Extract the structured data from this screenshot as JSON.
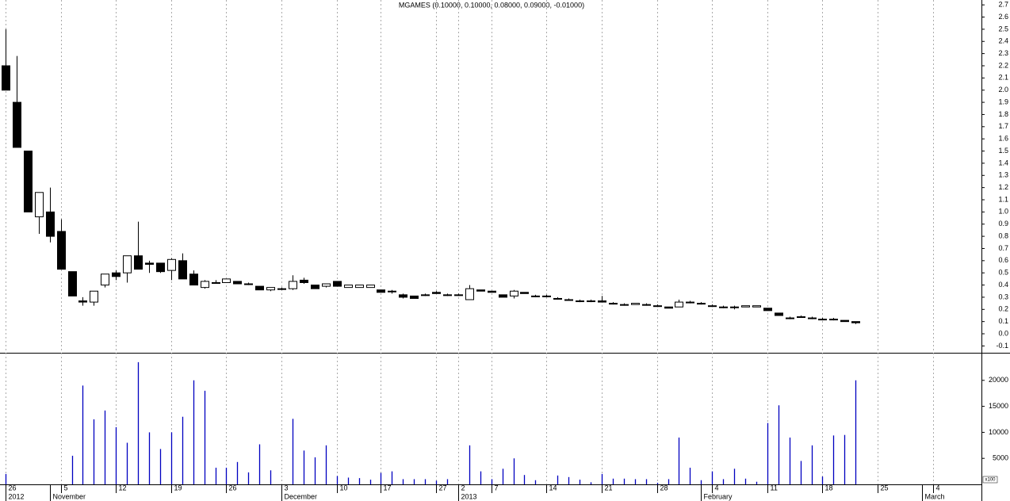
{
  "chart_data": [
    {
      "type": "candlestick",
      "title": "MGAMES (0.10000, 0.10000, 0.08000, 0.09000, -0.01000)",
      "open": [
        2.2,
        1.9,
        1.5,
        0.96,
        1.0,
        0.84,
        0.51,
        0.27,
        0.26,
        0.4,
        0.5,
        0.5,
        0.64,
        0.58,
        0.58,
        0.52,
        0.6,
        0.49,
        0.38,
        0.42,
        0.42,
        0.43,
        0.41,
        0.39,
        0.36,
        0.37,
        0.37,
        0.44,
        0.4,
        0.39,
        0.43,
        0.38,
        0.38,
        0.38,
        0.36,
        0.35,
        0.32,
        0.31,
        0.32,
        0.34,
        0.32,
        0.32,
        0.28,
        0.36,
        0.35,
        0.32,
        0.31,
        0.34,
        0.31,
        0.31,
        0.29,
        0.28,
        0.27,
        0.27,
        0.27,
        0.25,
        0.24,
        0.24,
        0.24,
        0.23,
        0.22,
        0.22,
        0.26,
        0.25,
        0.23,
        0.22,
        0.22,
        0.22,
        0.22,
        0.21,
        0.17,
        0.13,
        0.14,
        0.13,
        0.12,
        0.12,
        0.11,
        0.1
      ],
      "high": [
        2.5,
        2.28,
        1.5,
        1.16,
        1.2,
        0.94,
        0.51,
        0.3,
        0.35,
        0.49,
        0.52,
        0.64,
        0.92,
        0.6,
        0.58,
        0.62,
        0.66,
        0.52,
        0.44,
        0.44,
        0.45,
        0.43,
        0.42,
        0.39,
        0.38,
        0.38,
        0.48,
        0.46,
        0.4,
        0.41,
        0.43,
        0.4,
        0.4,
        0.4,
        0.36,
        0.36,
        0.33,
        0.31,
        0.33,
        0.35,
        0.33,
        0.33,
        0.4,
        0.36,
        0.35,
        0.32,
        0.36,
        0.34,
        0.32,
        0.32,
        0.3,
        0.29,
        0.28,
        0.28,
        0.31,
        0.26,
        0.25,
        0.25,
        0.25,
        0.24,
        0.22,
        0.28,
        0.27,
        0.26,
        0.24,
        0.23,
        0.23,
        0.23,
        0.23,
        0.21,
        0.17,
        0.14,
        0.15,
        0.14,
        0.13,
        0.13,
        0.11,
        0.1
      ],
      "low": [
        2.0,
        1.53,
        1.0,
        0.82,
        0.75,
        0.53,
        0.31,
        0.23,
        0.23,
        0.38,
        0.44,
        0.42,
        0.53,
        0.5,
        0.5,
        0.44,
        0.45,
        0.4,
        0.37,
        0.41,
        0.42,
        0.41,
        0.4,
        0.36,
        0.35,
        0.36,
        0.36,
        0.41,
        0.37,
        0.38,
        0.39,
        0.38,
        0.38,
        0.38,
        0.34,
        0.33,
        0.29,
        0.29,
        0.31,
        0.33,
        0.31,
        0.31,
        0.28,
        0.35,
        0.34,
        0.3,
        0.29,
        0.33,
        0.3,
        0.3,
        0.28,
        0.27,
        0.26,
        0.26,
        0.26,
        0.24,
        0.23,
        0.24,
        0.23,
        0.22,
        0.21,
        0.22,
        0.25,
        0.24,
        0.22,
        0.21,
        0.2,
        0.22,
        0.22,
        0.19,
        0.15,
        0.12,
        0.13,
        0.12,
        0.11,
        0.11,
        0.1,
        0.08
      ],
      "close": [
        2.0,
        1.53,
        1.0,
        1.16,
        0.8,
        0.53,
        0.31,
        0.26,
        0.35,
        0.49,
        0.47,
        0.64,
        0.53,
        0.57,
        0.51,
        0.61,
        0.45,
        0.4,
        0.43,
        0.42,
        0.45,
        0.41,
        0.41,
        0.36,
        0.38,
        0.37,
        0.43,
        0.42,
        0.37,
        0.41,
        0.39,
        0.4,
        0.4,
        0.4,
        0.34,
        0.35,
        0.3,
        0.29,
        0.32,
        0.33,
        0.32,
        0.32,
        0.37,
        0.35,
        0.34,
        0.3,
        0.35,
        0.33,
        0.31,
        0.31,
        0.29,
        0.28,
        0.27,
        0.27,
        0.26,
        0.25,
        0.24,
        0.25,
        0.24,
        0.23,
        0.21,
        0.26,
        0.26,
        0.25,
        0.23,
        0.22,
        0.22,
        0.23,
        0.23,
        0.19,
        0.15,
        0.13,
        0.14,
        0.13,
        0.12,
        0.12,
        0.1,
        0.09
      ],
      "up_color": "#ffffff",
      "down_color": "#000000",
      "xlim": [
        -0.5,
        88.4
      ],
      "ylim": [
        -0.156,
        2.74
      ],
      "yticks": [
        -0.1,
        {
          "value": 0,
          "label": "0.0"
        },
        0.1,
        0.2,
        0.3,
        0.4,
        0.5,
        0.6,
        0.7,
        0.8,
        0.9,
        {
          "value": 1,
          "label": "1.0"
        },
        1.1,
        1.2,
        1.3,
        1.4,
        1.5,
        1.6,
        1.7,
        1.8,
        1.9,
        {
          "value": 2,
          "label": "2.0"
        },
        2.1,
        2.2,
        2.3,
        2.4,
        2.5,
        2.6,
        2.7
      ],
      "grid": true
    },
    {
      "type": "bar",
      "values": [
        2000,
        0,
        0,
        0,
        0,
        0,
        5500,
        19000,
        12500,
        14200,
        11000,
        8000,
        23500,
        10000,
        6800,
        10000,
        13000,
        20000,
        18000,
        3200,
        3200,
        4300,
        2300,
        7700,
        2700,
        0,
        12600,
        6500,
        5200,
        7500,
        1600,
        1300,
        1200,
        900,
        2200,
        2500,
        1000,
        1000,
        1000,
        700,
        1000,
        0,
        7500,
        2500,
        1000,
        3000,
        5000,
        1800,
        800,
        0,
        1700,
        1400,
        900,
        400,
        2000,
        1100,
        1100,
        1000,
        1000,
        300,
        1000,
        9000,
        3200,
        800,
        2500,
        1000,
        3000,
        1100,
        500,
        11800,
        15200,
        9000,
        4500,
        7500,
        1500,
        9400,
        9500,
        20000
      ],
      "color": "#0000c0",
      "unit_label": "x100",
      "xlim": [
        -0.5,
        88.4
      ],
      "ylim": [
        0,
        25000
      ],
      "yticks": [
        5000,
        10000,
        15000,
        20000
      ],
      "xticks": [
        {
          "value": 0,
          "label": "26"
        },
        {
          "value": 5,
          "label": "5"
        },
        {
          "value": 10,
          "label": "12"
        },
        {
          "value": 15,
          "label": "19"
        },
        {
          "value": 20,
          "label": "26"
        },
        {
          "value": 25,
          "label": "3"
        },
        {
          "value": 30,
          "label": "10"
        },
        {
          "value": 34,
          "label": "17"
        },
        {
          "value": 39,
          "label": "27"
        },
        {
          "value": 41,
          "label": "2"
        },
        {
          "value": 44,
          "label": "7"
        },
        {
          "value": 49,
          "label": "14"
        },
        {
          "value": 54,
          "label": "21"
        },
        {
          "value": 59,
          "label": "28"
        },
        {
          "value": 64,
          "label": "4"
        },
        {
          "value": 69,
          "label": "11"
        },
        {
          "value": 74,
          "label": "18"
        },
        {
          "value": 79,
          "label": "25"
        },
        {
          "value": 84,
          "label": "4"
        }
      ],
      "month_ticks": [
        {
          "value": 0,
          "label": "2012"
        },
        {
          "value": 4,
          "label": "November"
        },
        {
          "value": 25,
          "label": "December"
        },
        {
          "value": 41,
          "label": "2013"
        },
        {
          "value": 63,
          "label": "February"
        },
        {
          "value": 83,
          "label": "March"
        }
      ]
    }
  ]
}
